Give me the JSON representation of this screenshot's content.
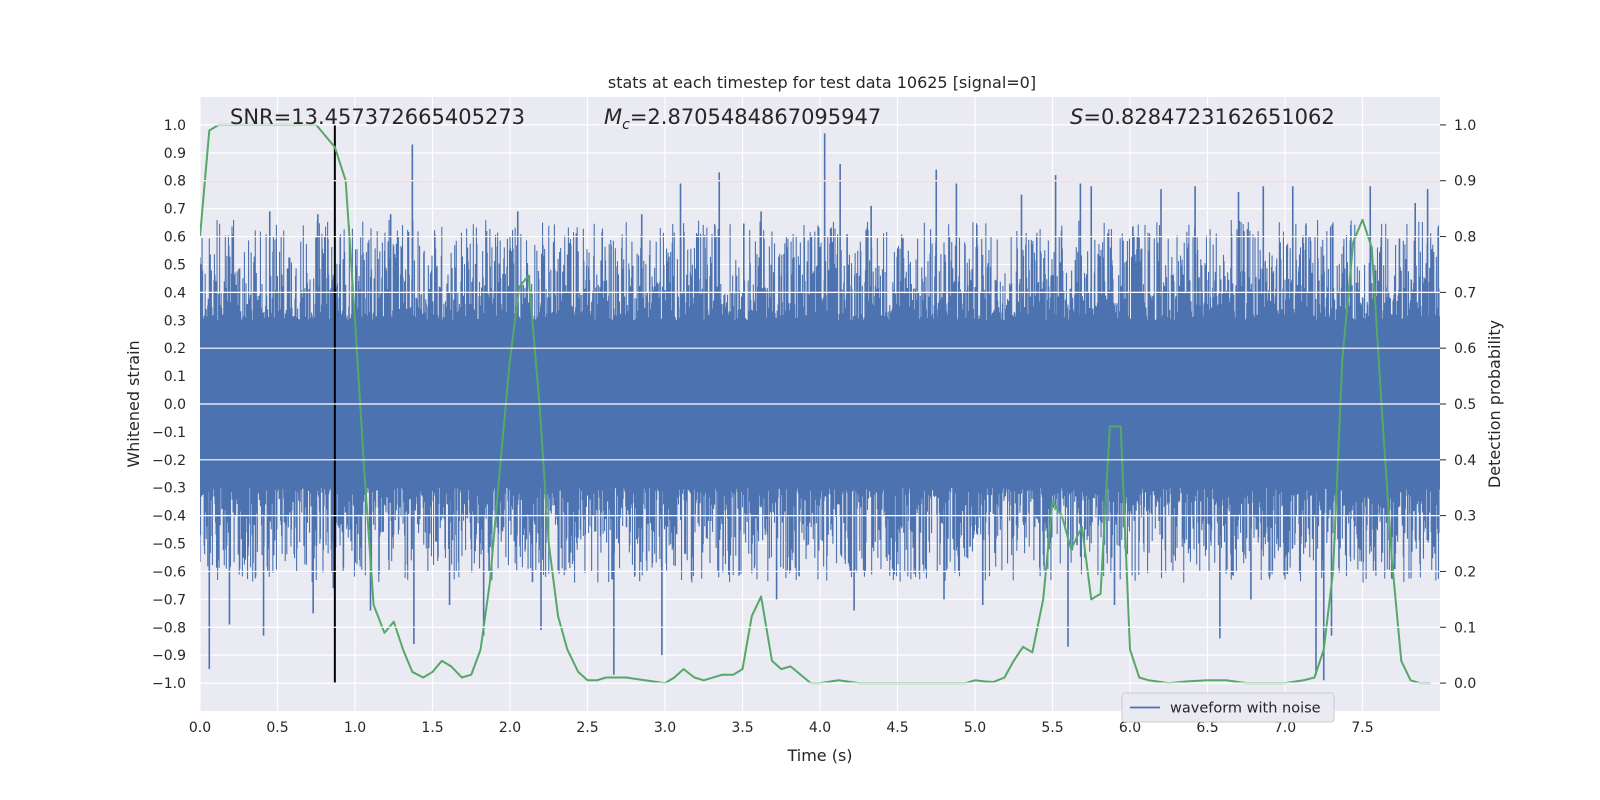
{
  "chart_data": {
    "type": "line",
    "title": "stats at each timestep for test data 10625 [signal=0]",
    "xlabel": "Time (s)",
    "ylabel_left": "Whitened strain",
    "ylabel_right": "Detection probability",
    "xlim": [
      0.0,
      8.0
    ],
    "ylim_left": [
      -1.1,
      1.1
    ],
    "ylim_right": [
      -0.05,
      1.05
    ],
    "xticks": [
      0.0,
      0.5,
      1.0,
      1.5,
      2.0,
      2.5,
      3.0,
      3.5,
      4.0,
      4.5,
      5.0,
      5.5,
      6.0,
      6.5,
      7.0,
      7.5
    ],
    "xtick_labels": [
      "0.0",
      "0.5",
      "1.0",
      "1.5",
      "2.0",
      "2.5",
      "3.0",
      "3.5",
      "4.0",
      "4.5",
      "5.0",
      "5.5",
      "6.0",
      "6.5",
      "7.0",
      "7.5"
    ],
    "yticks_left": [
      1.0,
      0.9,
      0.8,
      0.7,
      0.6,
      0.5,
      0.4,
      0.3,
      0.2,
      0.1,
      0.0,
      -0.1,
      -0.2,
      -0.3,
      -0.4,
      -0.5,
      -0.6,
      -0.7,
      -0.8,
      -0.9,
      -1.0
    ],
    "ytick_labels_left": [
      "1.0",
      "0.9",
      "0.8",
      "0.7",
      "0.6",
      "0.5",
      "0.4",
      "0.3",
      "0.2",
      "0.1",
      "0.0",
      "−0.1",
      "−0.2",
      "−0.3",
      "−0.4",
      "−0.5",
      "−0.6",
      "−0.7",
      "−0.8",
      "−0.9",
      "−1.0"
    ],
    "yticks_right": [
      1.0,
      0.9,
      0.8,
      0.7,
      0.6,
      0.5,
      0.4,
      0.3,
      0.2,
      0.1,
      0.0
    ],
    "ytick_labels_right": [
      "1.0",
      "0.9",
      "0.8",
      "0.7",
      "0.6",
      "0.5",
      "0.4",
      "0.3",
      "0.2",
      "0.1",
      "0.0"
    ],
    "annotations": {
      "snr": "SNR=13.457372665405273",
      "mc_symbol": "M",
      "mc_subscript": "c",
      "mc_value": "=2.8705484867095947",
      "s_symbol": "S",
      "s_value": "=0.8284723162651062"
    },
    "legend": {
      "label": "waveform with noise",
      "position": "lower-right"
    },
    "threshold_line": {
      "axis": "right",
      "value": 0.9,
      "color": "#c44e52"
    },
    "marker_line": {
      "x": 0.87,
      "y_range": [
        -1.0,
        1.0
      ],
      "color": "#000000"
    },
    "waveform": {
      "name": "waveform with noise",
      "color": "#4c72b0",
      "core_envelope": [
        -0.3,
        0.3
      ],
      "peaks": [
        {
          "x": 0.06,
          "y": -0.95
        },
        {
          "x": 0.19,
          "y": -0.79
        },
        {
          "x": 0.45,
          "y": 0.69
        },
        {
          "x": 0.41,
          "y": -0.83
        },
        {
          "x": 0.73,
          "y": -0.75
        },
        {
          "x": 0.76,
          "y": 0.68
        },
        {
          "x": 0.86,
          "y": -0.66
        },
        {
          "x": 1.1,
          "y": -0.74
        },
        {
          "x": 1.23,
          "y": 0.68
        },
        {
          "x": 1.37,
          "y": 0.93
        },
        {
          "x": 1.38,
          "y": -0.86
        },
        {
          "x": 1.61,
          "y": -0.72
        },
        {
          "x": 1.83,
          "y": -0.83
        },
        {
          "x": 2.05,
          "y": 0.69
        },
        {
          "x": 2.2,
          "y": -0.81
        },
        {
          "x": 2.67,
          "y": -0.97
        },
        {
          "x": 2.85,
          "y": 0.68
        },
        {
          "x": 2.98,
          "y": -0.9
        },
        {
          "x": 3.1,
          "y": 0.79
        },
        {
          "x": 3.35,
          "y": 0.83
        },
        {
          "x": 3.62,
          "y": 0.69
        },
        {
          "x": 3.72,
          "y": -0.7
        },
        {
          "x": 4.03,
          "y": 0.97
        },
        {
          "x": 4.13,
          "y": 0.86
        },
        {
          "x": 4.22,
          "y": -0.74
        },
        {
          "x": 4.33,
          "y": 0.71
        },
        {
          "x": 4.75,
          "y": 0.84
        },
        {
          "x": 4.8,
          "y": -0.7
        },
        {
          "x": 4.88,
          "y": 0.79
        },
        {
          "x": 5.05,
          "y": -0.72
        },
        {
          "x": 5.3,
          "y": 0.75
        },
        {
          "x": 5.52,
          "y": 0.82
        },
        {
          "x": 5.6,
          "y": -0.87
        },
        {
          "x": 5.68,
          "y": 0.79
        },
        {
          "x": 5.75,
          "y": 0.78
        },
        {
          "x": 5.9,
          "y": -0.72
        },
        {
          "x": 6.2,
          "y": 0.77
        },
        {
          "x": 6.42,
          "y": 0.78
        },
        {
          "x": 6.58,
          "y": -0.84
        },
        {
          "x": 6.7,
          "y": 0.76
        },
        {
          "x": 6.78,
          "y": -0.7
        },
        {
          "x": 6.86,
          "y": 0.78
        },
        {
          "x": 7.05,
          "y": 0.78
        },
        {
          "x": 7.2,
          "y": -0.97
        },
        {
          "x": 7.25,
          "y": -0.99
        },
        {
          "x": 7.3,
          "y": -0.83
        },
        {
          "x": 7.55,
          "y": 0.78
        },
        {
          "x": 7.84,
          "y": 0.72
        },
        {
          "x": 7.92,
          "y": 0.77
        }
      ]
    },
    "probability": {
      "name": "detection probability",
      "color": "#55a868",
      "x": [
        0.0,
        0.06,
        0.12,
        0.25,
        0.5,
        0.75,
        0.87,
        0.94,
        1.0,
        1.06,
        1.12,
        1.19,
        1.25,
        1.31,
        1.37,
        1.44,
        1.5,
        1.56,
        1.62,
        1.69,
        1.75,
        1.81,
        1.87,
        1.94,
        2.0,
        2.06,
        2.12,
        2.19,
        2.25,
        2.31,
        2.37,
        2.44,
        2.5,
        2.56,
        2.62,
        2.75,
        2.87,
        3.0,
        3.06,
        3.12,
        3.19,
        3.25,
        3.37,
        3.44,
        3.5,
        3.56,
        3.62,
        3.69,
        3.75,
        3.81,
        3.94,
        4.0,
        4.12,
        4.25,
        4.5,
        4.75,
        4.87,
        4.94,
        5.0,
        5.06,
        5.12,
        5.19,
        5.25,
        5.31,
        5.37,
        5.44,
        5.5,
        5.56,
        5.62,
        5.69,
        5.75,
        5.81,
        5.87,
        5.94,
        6.0,
        6.06,
        6.12,
        6.25,
        6.37,
        6.5,
        6.62,
        6.75,
        6.87,
        7.0,
        7.12,
        7.19,
        7.25,
        7.31,
        7.37,
        7.44,
        7.5,
        7.56,
        7.62,
        7.69,
        7.75,
        7.81,
        7.87,
        7.94
      ],
      "y": [
        0.8,
        0.99,
        1.0,
        1.0,
        1.0,
        1.0,
        0.96,
        0.9,
        0.65,
        0.38,
        0.14,
        0.09,
        0.11,
        0.06,
        0.02,
        0.01,
        0.02,
        0.04,
        0.03,
        0.01,
        0.015,
        0.06,
        0.18,
        0.4,
        0.58,
        0.71,
        0.73,
        0.5,
        0.25,
        0.12,
        0.06,
        0.02,
        0.005,
        0.005,
        0.01,
        0.01,
        0.005,
        0.0,
        0.01,
        0.025,
        0.01,
        0.005,
        0.015,
        0.015,
        0.025,
        0.12,
        0.155,
        0.04,
        0.025,
        0.03,
        0.0,
        0.0,
        0.005,
        0.0,
        0.0,
        0.0,
        0.0,
        0.0,
        0.005,
        0.003,
        0.002,
        0.01,
        0.04,
        0.065,
        0.055,
        0.15,
        0.325,
        0.3,
        0.24,
        0.28,
        0.15,
        0.16,
        0.46,
        0.46,
        0.06,
        0.01,
        0.005,
        0.0,
        0.003,
        0.005,
        0.005,
        0.0,
        0.0,
        0.0,
        0.005,
        0.01,
        0.06,
        0.2,
        0.58,
        0.79,
        0.83,
        0.78,
        0.51,
        0.22,
        0.04,
        0.005,
        0.0,
        0.0
      ]
    }
  }
}
